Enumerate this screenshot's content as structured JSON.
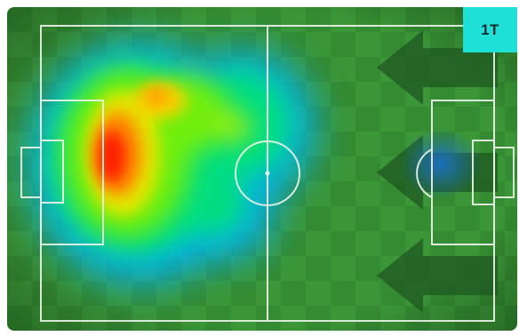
{
  "heatmap": {
    "period_label": "1T",
    "pitch_grass_light": "#3d9a3b",
    "pitch_grass_dark": "#348a33",
    "line_color": "#e9f2e6",
    "attack_direction": "right",
    "intensity_palette": [
      "#00b4ff",
      "#00e36b",
      "#a5f000",
      "#ffd200",
      "#ff6a00",
      "#ff1a00"
    ]
  }
}
